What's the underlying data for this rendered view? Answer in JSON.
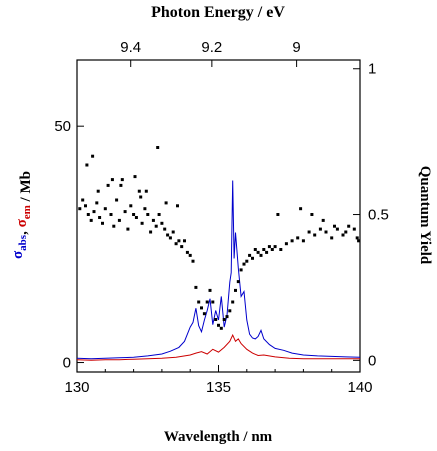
{
  "chart_data": {
    "type": "line",
    "title_top_axis": "Photon Energy / eV",
    "xlabel": "Wavelength / nm",
    "ylabel_left_parts": [
      {
        "text": "σ",
        "sub": "abs",
        "color": "#0000cc"
      },
      {
        "text": ", ",
        "sub": "",
        "color": "#000000"
      },
      {
        "text": "σ",
        "sub": "em",
        "color": "#cc0000"
      },
      {
        "text": " / Mb",
        "sub": "",
        "color": "#000000"
      }
    ],
    "ylabel_right": "Quantum Yield",
    "xlim": [
      130,
      140
    ],
    "x_ticks": [
      "130",
      "135",
      "140"
    ],
    "x_tick_values": [
      130,
      135,
      140
    ],
    "top_ticks": [
      "9.4",
      "9.2",
      "9"
    ],
    "top_tick_values_ev": [
      9.4,
      9.2,
      9.0
    ],
    "ylim_left": [
      -2,
      64
    ],
    "y_left_ticks": [
      "0",
      "50"
    ],
    "y_left_tick_values": [
      0,
      50
    ],
    "ylim_right": [
      -0.04,
      1.03
    ],
    "y_right_ticks": [
      "0",
      "0.5",
      "1"
    ],
    "y_right_tick_values": [
      0,
      0.5,
      1
    ],
    "grid": false,
    "series": [
      {
        "axis": "left",
        "color": "#0000cc",
        "x": [
          130,
          130.5,
          131,
          131.5,
          132,
          132.5,
          133,
          133.3,
          133.6,
          133.8,
          134.0,
          134.1,
          134.2,
          134.3,
          134.4,
          134.5,
          134.6,
          134.7,
          134.8,
          134.9,
          135.0,
          135.1,
          135.2,
          135.3,
          135.4,
          135.45,
          135.5,
          135.55,
          135.6,
          135.7,
          135.8,
          135.9,
          136.0,
          136.1,
          136.2,
          136.3,
          136.4,
          136.5,
          136.6,
          136.8,
          137.0,
          137.3,
          137.6,
          138,
          138.5,
          139,
          139.5,
          140
        ],
        "values": [
          0.9,
          0.8,
          0.9,
          1.0,
          1.1,
          1.4,
          1.8,
          2.4,
          3.2,
          4.5,
          7.5,
          8.5,
          11.5,
          7.8,
          6.5,
          9.0,
          11.0,
          13.5,
          8.0,
          11.0,
          9.0,
          14.0,
          7.5,
          10.0,
          17.0,
          19.0,
          38.5,
          22.0,
          27.5,
          20.0,
          14.0,
          15.0,
          9.0,
          6.0,
          5.2,
          5.0,
          5.5,
          6.8,
          5.0,
          3.8,
          3.0,
          2.6,
          2.0,
          1.6,
          1.4,
          1.3,
          1.2,
          1.1
        ]
      },
      {
        "axis": "left",
        "color": "#cc0000",
        "x": [
          130,
          130.5,
          131,
          131.5,
          132,
          132.5,
          133,
          133.5,
          134.0,
          134.2,
          134.4,
          134.6,
          134.8,
          135.0,
          135.2,
          135.4,
          135.5,
          135.6,
          135.7,
          135.8,
          136.0,
          136.2,
          136.4,
          136.6,
          137.0,
          137.5,
          138,
          138.5,
          139,
          139.5,
          140
        ],
        "values": [
          0.6,
          0.5,
          0.6,
          0.6,
          0.7,
          0.8,
          0.9,
          1.1,
          1.6,
          2.0,
          2.3,
          1.8,
          2.8,
          2.2,
          3.2,
          4.5,
          5.8,
          4.5,
          5.0,
          4.0,
          2.8,
          2.0,
          1.5,
          1.6,
          1.2,
          0.9,
          0.8,
          0.8,
          0.8,
          0.8,
          0.8
        ]
      },
      {
        "axis": "right",
        "style": "scatter",
        "color": "#000000",
        "x": [
          130.1,
          130.2,
          130.3,
          130.4,
          130.5,
          130.6,
          130.7,
          130.8,
          130.9,
          131.0,
          131.1,
          131.2,
          131.3,
          131.4,
          131.5,
          131.6,
          131.7,
          131.8,
          131.9,
          132.0,
          132.1,
          132.2,
          132.3,
          132.4,
          132.5,
          132.6,
          132.7,
          132.8,
          132.9,
          133.0,
          133.1,
          133.2,
          133.3,
          133.4,
          133.5,
          133.6,
          133.7,
          133.8,
          133.9,
          134.0,
          134.1,
          134.2,
          134.3,
          134.4,
          134.5,
          134.6,
          134.7,
          134.8,
          134.9,
          135.0,
          135.1,
          135.2,
          135.3,
          135.4,
          135.5,
          135.6,
          135.7,
          135.8,
          135.9,
          136.0,
          136.1,
          136.2,
          136.3,
          136.4,
          136.5,
          136.6,
          136.7,
          136.8,
          136.9,
          137.0,
          137.2,
          137.4,
          137.6,
          137.8,
          138.0,
          138.2,
          138.4,
          138.6,
          138.8,
          139.0,
          139.2,
          139.4,
          139.6,
          139.8,
          139.95,
          130.35,
          130.55,
          130.75,
          131.25,
          131.55,
          132.05,
          132.25,
          132.45,
          132.85,
          133.15,
          133.55,
          137.1,
          137.9,
          138.3,
          138.7,
          139.1,
          139.5,
          139.9
        ],
        "values": [
          0.52,
          0.55,
          0.53,
          0.5,
          0.48,
          0.51,
          0.54,
          0.49,
          0.47,
          0.52,
          0.6,
          0.5,
          0.46,
          0.55,
          0.48,
          0.62,
          0.51,
          0.45,
          0.53,
          0.5,
          0.49,
          0.58,
          0.47,
          0.52,
          0.5,
          0.44,
          0.48,
          0.46,
          0.5,
          0.47,
          0.45,
          0.43,
          0.42,
          0.44,
          0.4,
          0.41,
          0.39,
          0.41,
          0.37,
          0.36,
          0.34,
          0.25,
          0.2,
          0.18,
          0.16,
          0.2,
          0.24,
          0.2,
          0.14,
          0.12,
          0.11,
          0.14,
          0.15,
          0.17,
          0.2,
          0.24,
          0.27,
          0.31,
          0.33,
          0.34,
          0.36,
          0.35,
          0.38,
          0.37,
          0.36,
          0.38,
          0.37,
          0.39,
          0.38,
          0.39,
          0.38,
          0.4,
          0.41,
          0.42,
          0.41,
          0.44,
          0.43,
          0.45,
          0.44,
          0.42,
          0.45,
          0.43,
          0.46,
          0.45,
          0.41,
          0.67,
          0.7,
          0.58,
          0.62,
          0.6,
          0.63,
          0.56,
          0.58,
          0.73,
          0.54,
          0.53,
          0.5,
          0.52,
          0.5,
          0.48,
          0.46,
          0.44,
          0.42
        ]
      }
    ]
  }
}
